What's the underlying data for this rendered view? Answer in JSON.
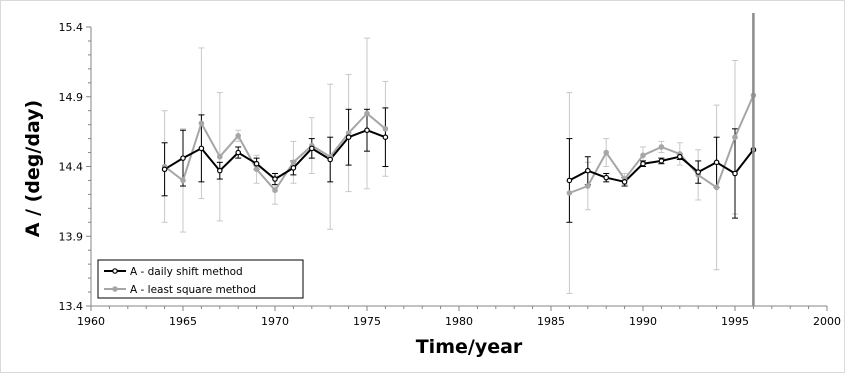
{
  "chart_data": {
    "type": "line",
    "xlabel": "Time/year",
    "ylabel": "A / (deg/day)",
    "xlim": [
      1960,
      2000
    ],
    "ylim": [
      13.4,
      15.4
    ],
    "xticks": [
      "1960",
      "1965",
      "1970",
      "1975",
      "1980",
      "1985",
      "1990",
      "1995",
      "2000"
    ],
    "yticks": [
      "13.4",
      "13.9",
      "14.4",
      "14.9",
      "15.4"
    ],
    "vertical_marker_x": 1996,
    "legend_position": "bottom-left",
    "series": [
      {
        "name": "A - daily shift method",
        "color": "#000000",
        "points": [
          {
            "x": 1964,
            "y": 14.38,
            "err": 0.19
          },
          {
            "x": 1965,
            "y": 14.46,
            "err": 0.2
          },
          {
            "x": 1966,
            "y": 14.53,
            "err": 0.24
          },
          {
            "x": 1967,
            "y": 14.37,
            "err": 0.06
          },
          {
            "x": 1968,
            "y": 14.5,
            "err": 0.04
          },
          {
            "x": 1969,
            "y": 14.42,
            "err": 0.04
          },
          {
            "x": 1970,
            "y": 14.31,
            "err": 0.04
          },
          {
            "x": 1971,
            "y": 14.39,
            "err": 0.05
          },
          {
            "x": 1972,
            "y": 14.53,
            "err": 0.07
          },
          {
            "x": 1973,
            "y": 14.45,
            "err": 0.16
          },
          {
            "x": 1974,
            "y": 14.61,
            "err": 0.2
          },
          {
            "x": 1975,
            "y": 14.66,
            "err": 0.15
          },
          {
            "x": 1976,
            "y": 14.61,
            "err": 0.21
          },
          {
            "x": 1986,
            "y": 14.3,
            "err": 0.3
          },
          {
            "x": 1987,
            "y": 14.37,
            "err": 0.1
          },
          {
            "x": 1988,
            "y": 14.32,
            "err": 0.03
          },
          {
            "x": 1989,
            "y": 14.29,
            "err": 0.03
          },
          {
            "x": 1990,
            "y": 14.42,
            "err": 0.02
          },
          {
            "x": 1991,
            "y": 14.44,
            "err": 0.02
          },
          {
            "x": 1992,
            "y": 14.47,
            "err": 0.02
          },
          {
            "x": 1993,
            "y": 14.36,
            "err": 0.08
          },
          {
            "x": 1994,
            "y": 14.43,
            "err": 0.18
          },
          {
            "x": 1995,
            "y": 14.35,
            "err": 0.32
          },
          {
            "x": 1996,
            "y": 14.52,
            "err": 0
          }
        ]
      },
      {
        "name": "A - least square method",
        "color": "#a6a6a6",
        "points": [
          {
            "x": 1964,
            "y": 14.4,
            "err": 0.4
          },
          {
            "x": 1965,
            "y": 14.3,
            "err": 0.37
          },
          {
            "x": 1966,
            "y": 14.71,
            "err": 0.54
          },
          {
            "x": 1967,
            "y": 14.47,
            "err": 0.46
          },
          {
            "x": 1968,
            "y": 14.62,
            "err": 0.04
          },
          {
            "x": 1969,
            "y": 14.38,
            "err": 0.1
          },
          {
            "x": 1970,
            "y": 14.23,
            "err": 0.1
          },
          {
            "x": 1971,
            "y": 14.43,
            "err": 0.15
          },
          {
            "x": 1972,
            "y": 14.55,
            "err": 0.2
          },
          {
            "x": 1973,
            "y": 14.47,
            "err": 0.52
          },
          {
            "x": 1974,
            "y": 14.64,
            "err": 0.42
          },
          {
            "x": 1975,
            "y": 14.78,
            "err": 0.54
          },
          {
            "x": 1976,
            "y": 14.67,
            "err": 0.34
          },
          {
            "x": 1986,
            "y": 14.21,
            "err": 0.72
          },
          {
            "x": 1987,
            "y": 14.26,
            "err": 0.17
          },
          {
            "x": 1988,
            "y": 14.5,
            "err": 0.1
          },
          {
            "x": 1989,
            "y": 14.31,
            "err": 0.04
          },
          {
            "x": 1990,
            "y": 14.48,
            "err": 0.06
          },
          {
            "x": 1991,
            "y": 14.54,
            "err": 0.04
          },
          {
            "x": 1992,
            "y": 14.49,
            "err": 0.08
          },
          {
            "x": 1993,
            "y": 14.34,
            "err": 0.18
          },
          {
            "x": 1994,
            "y": 14.25,
            "err": 0.59
          },
          {
            "x": 1995,
            "y": 14.61,
            "err": 0.55
          },
          {
            "x": 1996,
            "y": 14.91,
            "err": 0
          }
        ]
      }
    ]
  }
}
